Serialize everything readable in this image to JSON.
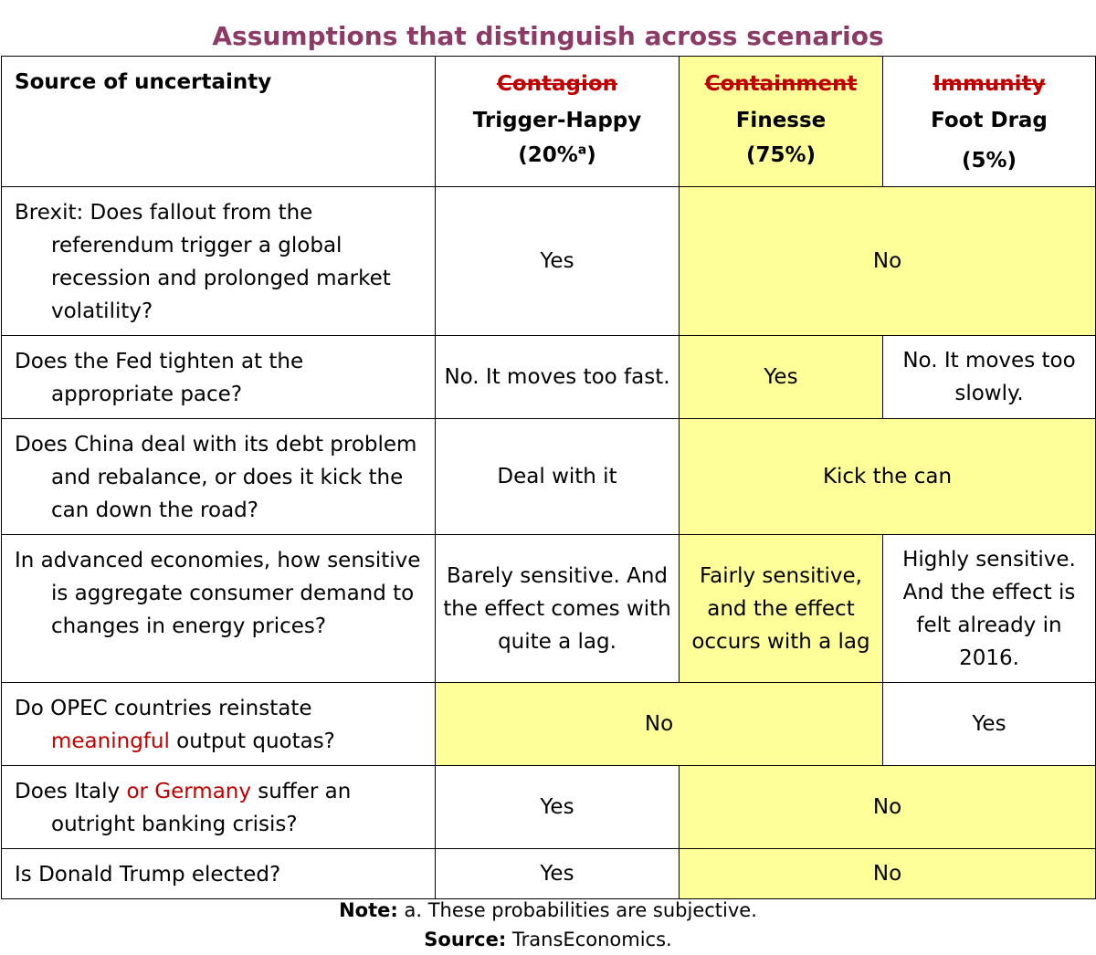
{
  "title": "Assumptions that distinguish across scenarios",
  "header": {
    "source_label": "Source of uncertainty",
    "scenarios": [
      {
        "struck": "Contagion",
        "name": "Trigger-Happy",
        "prob": "(20%",
        "sup": "a",
        "prob_close": ")"
      },
      {
        "struck": "Containment",
        "name": "Finesse",
        "prob": "(75%)"
      },
      {
        "struck": "Immunity",
        "name": "Foot Drag",
        "prob": "(5%)"
      }
    ]
  },
  "rows": {
    "brexit": {
      "q": "Brexit: Does fallout from the referendum trigger a global recession and prolonged market volatility?",
      "a1": "Yes",
      "a23": "No"
    },
    "fed": {
      "q": "Does the Fed tighten at the appropriate pace?",
      "a1": "No. It moves too fast.",
      "a2": "Yes",
      "a3": "No. It moves too slowly."
    },
    "china": {
      "q": "Does China deal with its debt problem and rebalance, or does it kick the can down the road?",
      "a1": "Deal with it",
      "a23": "Kick the can"
    },
    "energy": {
      "q": "In advanced economies, how sensitive is aggregate consumer demand to changes in energy prices?",
      "a1": "Barely sensitive. And the effect comes with quite a lag.",
      "a2": "Fairly sensitive, and the effect occurs with a lag",
      "a3": "Highly sensitive. And the effect is felt already in 2016."
    },
    "opec": {
      "q_pre": "Do OPEC countries reinstate ",
      "q_red": "meaningful",
      "q_post": " output quotas?",
      "a12": "No",
      "a3": "Yes"
    },
    "italy": {
      "q_pre": "Does Italy ",
      "q_red": "or Germany",
      "q_post": " suffer an outright banking crisis?",
      "a1": "Yes",
      "a23": "No"
    },
    "trump": {
      "q": "Is Donald Trump elected?",
      "a1": "Yes",
      "a23": "No"
    }
  },
  "footer": {
    "note_label": "Note:",
    "note_text": " a. These probabilities are subjective.",
    "source_label": "Source:",
    "source_text": " TransEconomics."
  },
  "colors": {
    "highlight": "#ffff99",
    "title": "#8b3b66",
    "red": "#c00000"
  }
}
